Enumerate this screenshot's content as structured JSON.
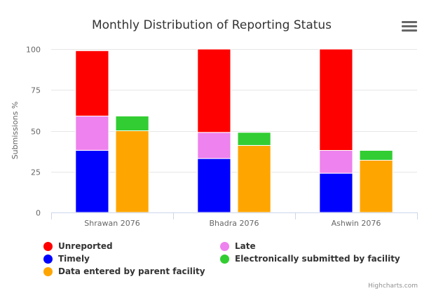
{
  "chart_data": {
    "type": "bar",
    "title": "Monthly Distribution of Reporting Status",
    "ylabel": "Submissions %",
    "ylim": [
      0,
      100
    ],
    "yticks": [
      0,
      25,
      50,
      75,
      100
    ],
    "categories": [
      "Shrawan 2076",
      "Bhadra 2076",
      "Ashwin 2076"
    ],
    "stacks": [
      {
        "series": [
          {
            "name": "Timely",
            "color": "#0000ff",
            "values": [
              38,
              33,
              24
            ]
          },
          {
            "name": "Late",
            "color": "#ee82ee",
            "values": [
              21,
              16,
              14
            ]
          },
          {
            "name": "Unreported",
            "color": "#ff0000",
            "values": [
              40,
              51,
              62
            ]
          }
        ]
      },
      {
        "series": [
          {
            "name": "Data entered by parent facility",
            "color": "#ffa500",
            "values": [
              50,
              41,
              32
            ]
          },
          {
            "name": "Electronically submitted by facility",
            "color": "#32cd32",
            "values": [
              9,
              8,
              6
            ]
          }
        ]
      }
    ],
    "legend": [
      {
        "name": "Unreported",
        "color": "#ff0000"
      },
      {
        "name": "Late",
        "color": "#ee82ee"
      },
      {
        "name": "Timely",
        "color": "#0000ff"
      },
      {
        "name": "Electronically submitted by facility",
        "color": "#32cd32"
      },
      {
        "name": "Data entered by parent facility",
        "color": "#ffa500"
      }
    ],
    "legend_position": "bottom",
    "grid": true
  },
  "menu_icon": "hamburger-menu-icon",
  "credits": "Highcharts.com"
}
